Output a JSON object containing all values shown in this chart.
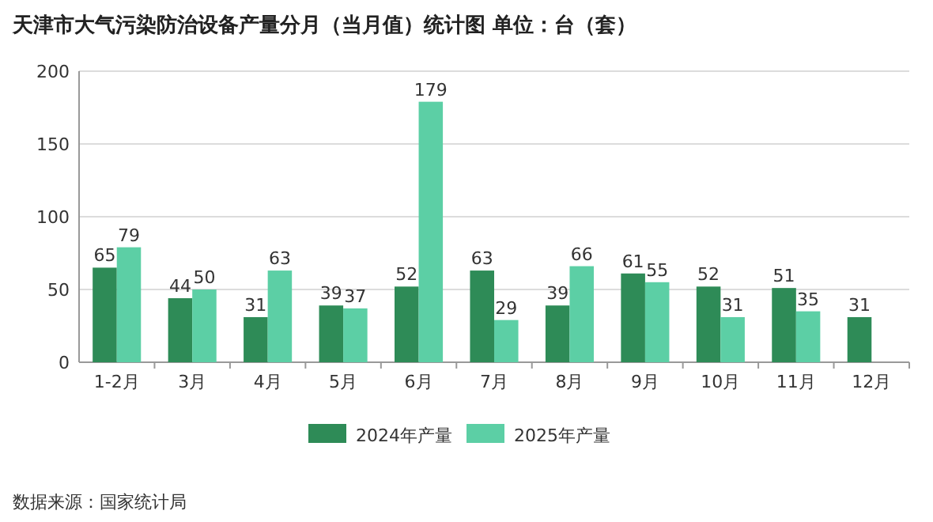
{
  "chart_data": {
    "type": "bar",
    "title": "天津市大气污染防治设备产量分月（当月值）统计图  单位：台（套）",
    "categories": [
      "1-2月",
      "3月",
      "4月",
      "5月",
      "6月",
      "7月",
      "8月",
      "9月",
      "10月",
      "11月",
      "12月"
    ],
    "series": [
      {
        "name": "2024年产量",
        "color": "#2e8b57",
        "values": [
          65,
          44,
          31,
          39,
          52,
          63,
          39,
          61,
          52,
          51,
          31
        ]
      },
      {
        "name": "2025年产量",
        "color": "#5ccfa5",
        "values": [
          79,
          50,
          63,
          37,
          179,
          29,
          66,
          55,
          31,
          35,
          null
        ]
      }
    ],
    "ylim": [
      0,
      200
    ],
    "yticks": [
      0,
      50,
      100,
      150,
      200
    ],
    "grid": "y",
    "legend": "bottom",
    "data_labels": true,
    "annotations": [
      "数据来源：国家统计局"
    ]
  }
}
